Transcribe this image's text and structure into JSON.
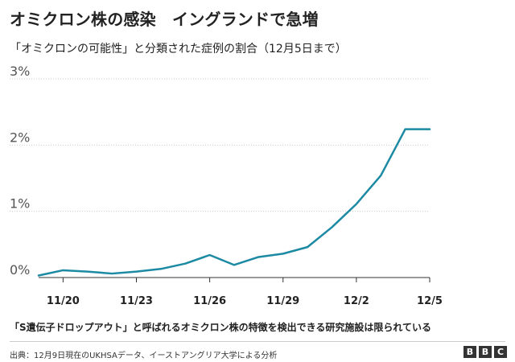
{
  "title": "オミクロン株の感染　イングランドで急増",
  "subtitle": "「オミクロンの可能性」と分類された症例の割合（12月5日まで）",
  "footnote": "「S遺伝子ドロップアウト」と呼ばれるオミクロン株の特徴を検出できる研究施設は限られている",
  "source": "出典：12月9日現在のUKHSAデータ、イーストアングリア大学による分析",
  "logo": [
    "B",
    "B",
    "C"
  ],
  "colors": {
    "line": "#1d8aa3",
    "grid": "#cccccc",
    "axis": "#333333",
    "text": "#222222",
    "tick_label": "#555555"
  },
  "chart_data": {
    "type": "line",
    "title": "オミクロン株の感染　イングランドで急増",
    "subtitle": "「オミクロンの可能性」と分類された症例の割合（12月5日まで）",
    "xlabel": "",
    "ylabel": "",
    "x": [
      "11/19",
      "11/20",
      "11/21",
      "11/22",
      "11/23",
      "11/24",
      "11/25",
      "11/26",
      "11/27",
      "11/28",
      "11/29",
      "11/30",
      "12/1",
      "12/2",
      "12/3",
      "12/4",
      "12/5"
    ],
    "series": [
      {
        "values": [
          0.03,
          0.11,
          0.09,
          0.06,
          0.09,
          0.13,
          0.21,
          0.34,
          0.19,
          0.31,
          0.36,
          0.46,
          0.76,
          1.11,
          1.54,
          2.24,
          2.24
        ]
      }
    ],
    "x_tick_labels": [
      "11/20",
      "11/23",
      "11/26",
      "11/29",
      "12/2",
      "12/5"
    ],
    "y_ticks": [
      0,
      1,
      2,
      3
    ],
    "y_tick_labels": [
      "0%",
      "1%",
      "2%",
      "3%"
    ],
    "ylim": [
      0,
      3
    ],
    "grid": true,
    "legend": "none"
  }
}
